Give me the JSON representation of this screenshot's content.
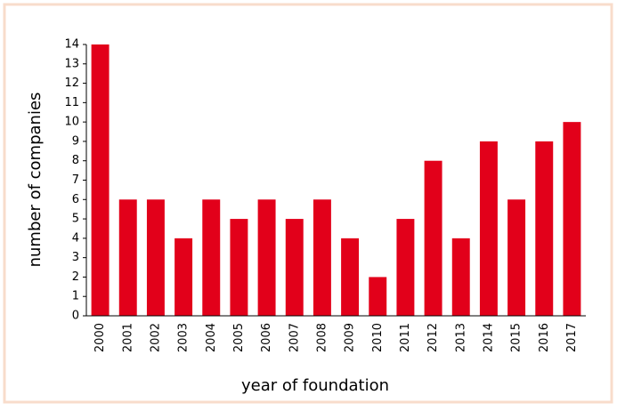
{
  "chart_data": {
    "type": "bar",
    "xlabel": "year of foundation",
    "ylabel": "number of companies",
    "categories": [
      "2000",
      "2001",
      "2002",
      "2003",
      "2004",
      "2005",
      "2006",
      "2007",
      "2008",
      "2009",
      "2010",
      "2011",
      "2012",
      "2013",
      "2014",
      "2015",
      "2016",
      "2017"
    ],
    "values": [
      14,
      6,
      6,
      4,
      6,
      5,
      6,
      5,
      6,
      4,
      2,
      5,
      8,
      4,
      9,
      6,
      9,
      10
    ],
    "color": "#e2001a",
    "ylim": [
      0,
      14
    ],
    "yticks": [
      0,
      1,
      2,
      3,
      4,
      5,
      6,
      7,
      8,
      9,
      10,
      11,
      12,
      13,
      14
    ],
    "grid": false
  }
}
